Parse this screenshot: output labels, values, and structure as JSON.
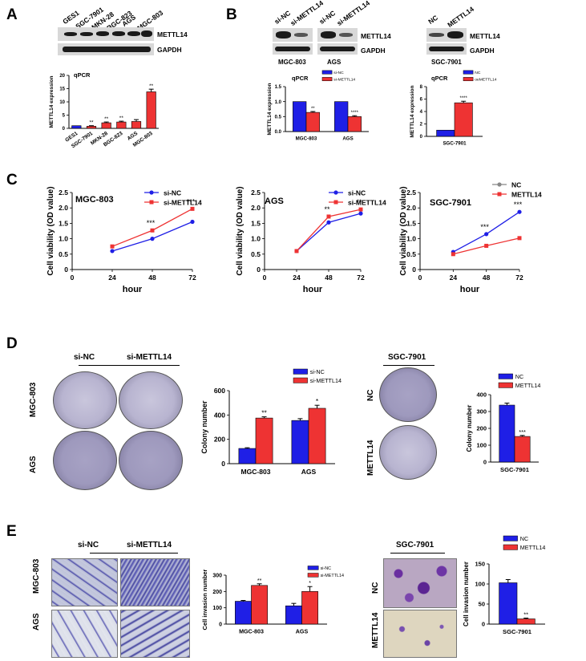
{
  "panels": {
    "A": {
      "label": "A",
      "lanes": [
        "GES1",
        "SGC-7901",
        "MKN-28",
        "BGC-823",
        "AGS",
        "MGC-803"
      ],
      "blot_labels": [
        "METTL14",
        "GAPDH"
      ],
      "chart_title": "qPCR"
    },
    "B": {
      "label": "B",
      "left_lanes": [
        "si-NC",
        "si-METTL14",
        "si-NC",
        "si-METTL14"
      ],
      "right_lanes": [
        "NC",
        "METTL14"
      ],
      "blot_labels": [
        "METTL14",
        "GAPDH"
      ],
      "left_cells": [
        "MGC-803",
        "AGS"
      ],
      "right_cell": "SGC-7901",
      "chart_title": "qPCR"
    },
    "C": {
      "label": "C"
    },
    "D": {
      "label": "D",
      "col_headers": [
        "si-NC",
        "si-METTL14"
      ],
      "row_labels": [
        "MGC-803",
        "AGS"
      ],
      "right_header": "SGC-7901",
      "right_rows": [
        "NC",
        "METTL14"
      ]
    },
    "E": {
      "label": "E",
      "col_headers": [
        "si-NC",
        "si-METTL14"
      ],
      "row_labels": [
        "MGC-803",
        "AGS"
      ],
      "right_header": "SGC-7901",
      "right_rows": [
        "NC",
        "METTL14"
      ]
    }
  },
  "chart_data": [
    {
      "id": "A_qpcr",
      "type": "bar",
      "title": "qPCR",
      "ylabel": "METTL14 expression",
      "ylim": [
        0,
        20
      ],
      "yticks": [
        0,
        5,
        10,
        15,
        20
      ],
      "categories": [
        "GES1",
        "SGC-7901",
        "MKN-28",
        "BGC-823",
        "AGS",
        "MGC-803"
      ],
      "values": [
        1,
        0.8,
        2.1,
        2.4,
        2.6,
        13.8
      ],
      "errors": [
        0,
        0.2,
        0.3,
        0.3,
        0.7,
        1.0
      ],
      "colors": [
        "#1f1fe6",
        "#ee3333",
        "#ee3333",
        "#ee3333",
        "#ee3333",
        "#ee3333"
      ],
      "annotations": [
        "",
        "**",
        "**",
        "**",
        "",
        "**"
      ]
    },
    {
      "id": "B_si",
      "type": "bar",
      "title": "qPCR",
      "ylabel": "METTL14 expression",
      "ylim": [
        0,
        1.5
      ],
      "yticks": [
        0.0,
        0.5,
        1.0,
        1.5
      ],
      "categories": [
        "MGC-803",
        "AGS"
      ],
      "series": [
        {
          "name": "si-NC",
          "color": "#1f1fe6",
          "values": [
            1,
            1
          ]
        },
        {
          "name": "si-METTL14",
          "color": "#ee3333",
          "values": [
            0.64,
            0.5
          ]
        }
      ],
      "errors": [
        [
          0,
          0
        ],
        [
          0.03,
          0.03
        ]
      ],
      "annotations": [
        [
          "",
          ""
        ],
        [
          "**",
          "****"
        ]
      ]
    },
    {
      "id": "B_oe",
      "type": "bar",
      "title": "qPCR",
      "ylabel": "METTL14 expression",
      "ylim": [
        0,
        8
      ],
      "yticks": [
        0,
        2,
        4,
        6,
        8
      ],
      "categories": [
        "SGC-7901"
      ],
      "series": [
        {
          "name": "NC",
          "color": "#1f1fe6",
          "values": [
            1
          ]
        },
        {
          "name": "oeMETTL14",
          "color": "#ee3333",
          "values": [
            5.4
          ]
        }
      ],
      "errors": [
        [
          0
        ],
        [
          0.25
        ]
      ],
      "annotations": [
        [
          ""
        ],
        [
          "****"
        ]
      ]
    },
    {
      "id": "C_MGC803",
      "type": "line",
      "title": "MGC-803",
      "xlabel": "hour",
      "ylabel": "Cell viability (OD value)",
      "xlim": [
        0,
        72
      ],
      "ylim": [
        0,
        2.5
      ],
      "xticks": [
        0,
        24,
        48,
        72
      ],
      "yticks": [
        0,
        0.5,
        1.0,
        1.5,
        2.0,
        2.5
      ],
      "x": [
        24,
        48,
        72
      ],
      "series": [
        {
          "name": "si-NC",
          "color": "#1f1fe6",
          "values": [
            0.6,
            1.0,
            1.55
          ]
        },
        {
          "name": "si-METTL14",
          "color": "#ee3333",
          "values": [
            0.75,
            1.27,
            1.97
          ]
        }
      ],
      "annotations": [
        {
          "x": 48,
          "text": "***"
        },
        {
          "x": 72,
          "text": "***"
        }
      ]
    },
    {
      "id": "C_AGS",
      "type": "line",
      "title": "AGS",
      "xlabel": "hour",
      "ylabel": "Cell viability (OD value)",
      "xlim": [
        0,
        72
      ],
      "ylim": [
        0,
        2.5
      ],
      "xticks": [
        0,
        24,
        48,
        72
      ],
      "yticks": [
        0,
        0.5,
        1.0,
        1.5,
        2.0,
        2.5
      ],
      "x": [
        24,
        48,
        72
      ],
      "series": [
        {
          "name": "si-NC",
          "color": "#1f1fe6",
          "values": [
            0.6,
            1.53,
            1.82
          ]
        },
        {
          "name": "si-METTL14",
          "color": "#ee3333",
          "values": [
            0.6,
            1.72,
            1.95
          ]
        }
      ],
      "annotations": [
        {
          "x": 48,
          "text": "**"
        },
        {
          "x": 72,
          "text": "**"
        }
      ]
    },
    {
      "id": "C_SGC7901",
      "type": "line",
      "title": "SGC-7901",
      "xlabel": "hour",
      "ylabel": "Cell viability (OD value)",
      "xlim": [
        0,
        72
      ],
      "ylim": [
        0,
        2.5
      ],
      "xticks": [
        0,
        24,
        48,
        72
      ],
      "yticks": [
        0,
        0.5,
        1.0,
        1.5,
        2.0,
        2.5
      ],
      "x": [
        24,
        48,
        72
      ],
      "series": [
        {
          "name": "NC",
          "color": "#1f1fe6",
          "legend_color": "#888888",
          "values": [
            0.57,
            1.15,
            1.87
          ]
        },
        {
          "name": "METTL14",
          "color": "#ee3333",
          "values": [
            0.5,
            0.77,
            1.02
          ]
        }
      ],
      "annotations": [
        {
          "x": 48,
          "text": "***"
        },
        {
          "x": 72,
          "text": "***"
        }
      ]
    },
    {
      "id": "D_si",
      "type": "bar",
      "ylabel": "Colony number",
      "ylim": [
        0,
        600
      ],
      "yticks": [
        0,
        200,
        400,
        600
      ],
      "categories": [
        "MGC-803",
        "AGS"
      ],
      "series": [
        {
          "name": "si-NC",
          "color": "#1f1fe6",
          "values": [
            125,
            355
          ]
        },
        {
          "name": "si-METTL14",
          "color": "#ee3333",
          "values": [
            375,
            455
          ]
        }
      ],
      "errors": [
        [
          6,
          15
        ],
        [
          10,
          25
        ]
      ],
      "annotations": [
        [
          "",
          ""
        ],
        [
          "**",
          "*"
        ]
      ]
    },
    {
      "id": "D_oe",
      "type": "bar",
      "ylabel": "Colony number",
      "ylim": [
        0,
        400
      ],
      "yticks": [
        0,
        100,
        200,
        300,
        400
      ],
      "categories": [
        "SGC-7901"
      ],
      "series": [
        {
          "name": "NC",
          "color": "#1f1fe6",
          "values": [
            338
          ]
        },
        {
          "name": "METTL14",
          "color": "#ee3333",
          "values": [
            152
          ]
        }
      ],
      "errors": [
        [
          12
        ],
        [
          6
        ]
      ],
      "annotations": [
        [
          ""
        ],
        [
          "***"
        ]
      ]
    },
    {
      "id": "E_si",
      "type": "bar",
      "ylabel": "Cell invasion number",
      "ylim": [
        0,
        300
      ],
      "yticks": [
        0,
        100,
        200,
        300
      ],
      "categories": [
        "MGC-803",
        "AGS"
      ],
      "series": [
        {
          "name": "si-NC",
          "color": "#1f1fe6",
          "values": [
            140,
            112
          ]
        },
        {
          "name": "si-METTL14",
          "color": "#ee3333",
          "values": [
            237,
            200
          ]
        }
      ],
      "errors": [
        [
          5,
          15
        ],
        [
          10,
          30
        ]
      ],
      "annotations": [
        [
          "",
          ""
        ],
        [
          "**",
          "*"
        ]
      ]
    },
    {
      "id": "E_oe",
      "type": "bar",
      "ylabel": "Cell invasion number",
      "ylim": [
        0,
        150
      ],
      "yticks": [
        0,
        50,
        100,
        150
      ],
      "categories": [
        "SGC-7901"
      ],
      "series": [
        {
          "name": "NC",
          "color": "#1f1fe6",
          "values": [
            103
          ]
        },
        {
          "name": "METTL14",
          "color": "#ee3333",
          "values": [
            13
          ]
        }
      ],
      "errors": [
        [
          8
        ],
        [
          2
        ]
      ],
      "annotations": [
        [
          ""
        ],
        [
          "**"
        ]
      ]
    }
  ]
}
